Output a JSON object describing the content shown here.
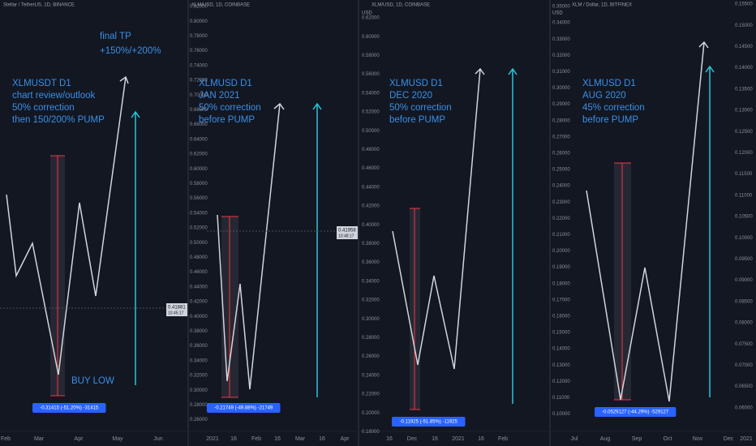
{
  "panels": [
    {
      "header": "Stellar / TetherUS, 1D, BINANCE",
      "annotations": [
        "XLMUSDT D1",
        "chart review/outlook",
        "50% correction",
        "then 150/200% PUMP"
      ],
      "target": [
        "final TP",
        "+150%/+200%"
      ],
      "note": "BUY LOW",
      "ticks": [],
      "xlabels": [
        "Feb",
        "Mar",
        "Apr",
        "May",
        "Jun"
      ],
      "measure": "-0.31415 (-51.20%) -31415",
      "price": "0.41881",
      "time": "10:45:17"
    },
    {
      "header": "XLM/USD, 1D, COINBASE",
      "annotations": [
        "XLMUSD D1",
        "JAN 2021",
        "50% correction",
        "before PUMP"
      ],
      "ticks": [
        "0.82000",
        "0.80000",
        "0.78000",
        "0.76000",
        "0.74000",
        "0.72000",
        "0.70000",
        "0.68000",
        "0.66000",
        "0.64000",
        "0.62000",
        "0.60000",
        "0.58000",
        "0.56000",
        "0.54000",
        "0.52000",
        "0.50000",
        "0.48000",
        "0.46000",
        "0.44000",
        "0.42000",
        "0.40000",
        "0.38000",
        "0.36000",
        "0.34000",
        "0.32000",
        "0.30000",
        "0.28000",
        "0.26000"
      ],
      "xlabels": [
        "2021",
        "16",
        "Feb",
        "16",
        "Mar",
        "16",
        "Apr"
      ],
      "measure": "-0.21749 (-49.88%) -21749",
      "price": "0.41958",
      "time": "10:48:17"
    },
    {
      "header": "XLM/USD, 1D, COINBASE",
      "unit": "USD",
      "annotations": [
        "XLMUSD D1",
        "DEC 2020",
        "50% correction",
        "before PUMP"
      ],
      "ticks": [
        "0.62000",
        "0.60000",
        "0.58000",
        "0.56000",
        "0.54000",
        "0.52000",
        "0.50000",
        "0.48000",
        "0.46000",
        "0.44000",
        "0.42000",
        "0.40000",
        "0.38000",
        "0.36000",
        "0.34000",
        "0.32000",
        "0.30000",
        "0.28000",
        "0.26000",
        "0.24000",
        "0.22000",
        "0.20000",
        "0.18000"
      ],
      "xlabels": [
        "16",
        "Dec",
        "16",
        "2021",
        "16",
        "Feb"
      ],
      "measure": "-0.11925 (-51.85%) -11925"
    },
    {
      "header": "XLM / Dollar, 1D, BITFINEX",
      "unit": "USD",
      "annotations": [
        "XLMUSD D1",
        "AUG 2020",
        "45% correction",
        "before PUMP"
      ],
      "ticks": [
        "0.35000",
        "0.34000",
        "0.33000",
        "0.32000",
        "0.31000",
        "0.30000",
        "0.29000",
        "0.28000",
        "0.27000",
        "0.26000",
        "0.25000",
        "0.24000",
        "0.23000",
        "0.22000",
        "0.21000",
        "0.20000",
        "0.19000",
        "0.18000",
        "0.17000",
        "0.16000",
        "0.15000",
        "0.14000",
        "0.13000",
        "0.12000",
        "0.11000",
        "0.10000"
      ],
      "ticks2": [
        "0.15500",
        "0.15000",
        "0.14500",
        "0.14000",
        "0.13500",
        "0.13000",
        "0.12500",
        "0.12000",
        "0.11500",
        "0.11000",
        "0.10500",
        "0.10000",
        "0.09500",
        "0.09000",
        "0.08500",
        "0.08000",
        "0.07500",
        "0.07000",
        "0.06500",
        "0.06000"
      ],
      "xlabels": [
        "Jul",
        "Aug",
        "Sep",
        "Oct",
        "Nov",
        "Dec",
        "2021"
      ],
      "measure": "-0.0529127 (-44.29%) -529127"
    }
  ]
}
